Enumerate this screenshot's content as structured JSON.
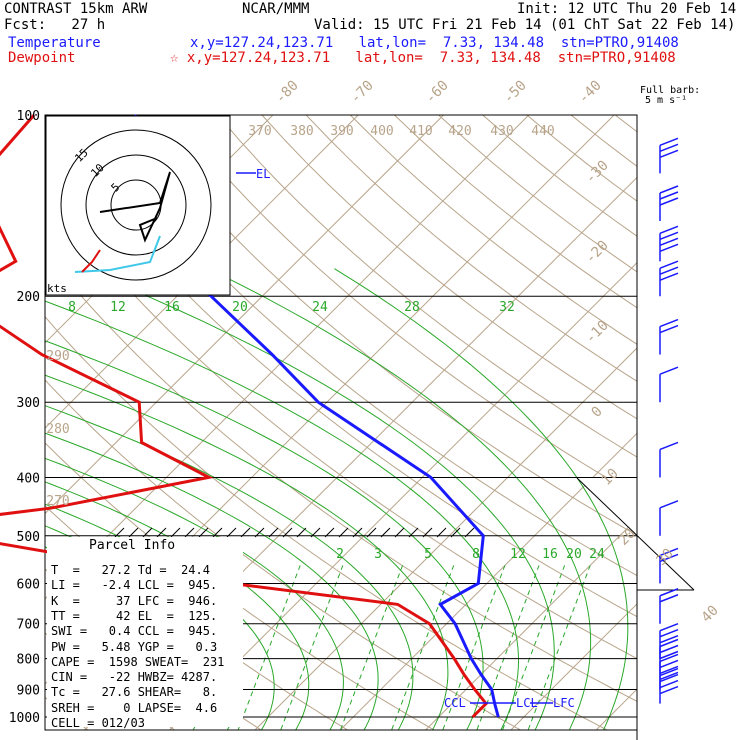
{
  "header": {
    "model": "CONTRAST 15km ARW",
    "fcst": "Fcst:   27 h",
    "center": "NCAR/MMM",
    "init": "Init: 12 UTC Thu 20 Feb 14",
    "valid": "Valid: 15 UTC Fri 21 Feb 14 (01 ChT Sat 22 Feb 14)",
    "temp_label": "Temperature",
    "temp_info": "x,y=127.24,123.71   lat,lon=  7.33, 134.48  stn=PTRO,91408",
    "dew_label": "Dewpoint",
    "dew_info": "☆ x,y=127.24,123.71   lat,lon=  7.33, 134.48  stn=PTRO,91408",
    "barb_note1": "Full barb:",
    "barb_note2": "5 m s⁻¹"
  },
  "hodograph": {
    "ring_labels": [
      "15",
      "10",
      "5"
    ],
    "units": "kts"
  },
  "parcel": {
    "title": "Parcel Info",
    "lines": [
      "T  =   27.2 Td =  24.4",
      "LI =   -2.4 LCL =  945.",
      "K  =     37 LFC =  946.",
      "TT =     42 EL  =  125.",
      "SWI =   0.4 CCL =  945.",
      "PW =   5.48 YGP =   0.3",
      "CAPE =  1598 SWEAT=  231",
      "CIN =   -22 HWBZ= 4287.",
      "Tc =   27.6 SHEAR=   8.",
      "SREH =    0 LAPSE=  4.6",
      "CELL = 012/03"
    ]
  },
  "levels": {
    "el": "EL",
    "ccl": "CCL",
    "lcl": "LCL",
    "lfc": "LFC"
  },
  "chart_data": {
    "type": "line",
    "title": "CONTRAST 15km ARW",
    "xlabel": "",
    "ylabel": "",
    "pressure_ticks": [
      100,
      200,
      300,
      400,
      500,
      600,
      700,
      800,
      900,
      1000
    ],
    "isotherm_labels": [
      -80,
      -70,
      -60,
      -50,
      -40,
      -30,
      -20,
      -10,
      0,
      10,
      20,
      30,
      40
    ],
    "theta_labels": [
      370,
      380,
      390,
      400,
      410,
      420,
      430,
      440,
      290,
      280,
      270
    ],
    "mixing_ratio_labels": [
      2,
      3,
      5,
      8,
      12,
      16,
      20,
      24
    ],
    "theta_e_labels": [
      8,
      12,
      16,
      20,
      24,
      28,
      32
    ],
    "series": [
      {
        "name": "Temperature",
        "color": "#1a1aff",
        "points": [
          {
            "p": 100,
            "t": -86
          },
          {
            "p": 125,
            "t": -83
          },
          {
            "p": 150,
            "t": -72
          },
          {
            "p": 175,
            "t": -65
          },
          {
            "p": 200,
            "t": -56
          },
          {
            "p": 250,
            "t": -42
          },
          {
            "p": 300,
            "t": -31
          },
          {
            "p": 400,
            "t": -9
          },
          {
            "p": 500,
            "t": 4
          },
          {
            "p": 600,
            "t": 9
          },
          {
            "p": 650,
            "t": 7
          },
          {
            "p": 700,
            "t": 11
          },
          {
            "p": 800,
            "t": 17
          },
          {
            "p": 850,
            "t": 20
          },
          {
            "p": 900,
            "t": 23
          },
          {
            "p": 950,
            "t": 25
          },
          {
            "p": 1000,
            "t": 27
          }
        ]
      },
      {
        "name": "Dewpoint",
        "color": "#e01010",
        "points": [
          {
            "p": 100,
            "t": -98
          },
          {
            "p": 130,
            "t": -97
          },
          {
            "p": 150,
            "t": -90
          },
          {
            "p": 175,
            "t": -83
          },
          {
            "p": 200,
            "t": -86
          },
          {
            "p": 250,
            "t": -69
          },
          {
            "p": 300,
            "t": -52
          },
          {
            "p": 350,
            "t": -47
          },
          {
            "p": 400,
            "t": -35
          },
          {
            "p": 450,
            "t": -50
          },
          {
            "p": 480,
            "t": -64
          },
          {
            "p": 500,
            "t": -58
          },
          {
            "p": 600,
            "t": -20
          },
          {
            "p": 650,
            "t": 2
          },
          {
            "p": 700,
            "t": 8
          },
          {
            "p": 800,
            "t": 15
          },
          {
            "p": 850,
            "t": 18
          },
          {
            "p": 900,
            "t": 21
          },
          {
            "p": 950,
            "t": 24
          },
          {
            "p": 1000,
            "t": 24
          }
        ]
      }
    ],
    "wind_barbs": [
      {
        "p": 125,
        "dir": 300,
        "speed_ms": 15
      },
      {
        "p": 150,
        "dir": 300,
        "speed_ms": 15
      },
      {
        "p": 175,
        "dir": 300,
        "speed_ms": 20
      },
      {
        "p": 200,
        "dir": 300,
        "speed_ms": 15
      },
      {
        "p": 250,
        "dir": 320,
        "speed_ms": 10
      },
      {
        "p": 300,
        "dir": 330,
        "speed_ms": 5
      },
      {
        "p": 400,
        "dir": 350,
        "speed_ms": 5
      },
      {
        "p": 500,
        "dir": 10,
        "speed_ms": 5
      },
      {
        "p": 600,
        "dir": 60,
        "speed_ms": 10
      },
      {
        "p": 700,
        "dir": 70,
        "speed_ms": 10
      },
      {
        "p": 800,
        "dir": 70,
        "speed_ms": 15
      },
      {
        "p": 850,
        "dir": 70,
        "speed_ms": 15
      },
      {
        "p": 900,
        "dir": 70,
        "speed_ms": 20
      },
      {
        "p": 950,
        "dir": 70,
        "speed_ms": 20
      }
    ]
  }
}
